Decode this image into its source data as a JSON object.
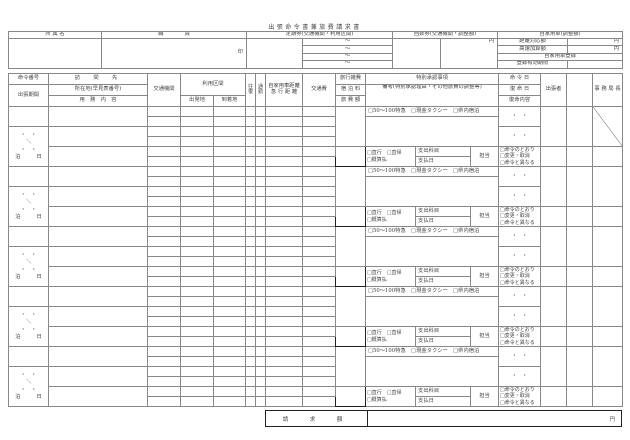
{
  "title": "出張命令書兼旅費請求書",
  "header": {
    "affiliation": "所 属 名",
    "staff": "職　　　　員",
    "seal": "印",
    "commuter_pass": "定期券(交通機関・利用区間)",
    "tilde": "〜",
    "coupon": "回数券(交通機関・調整額)",
    "yen": "円",
    "private_car": "自家用車(調整額)",
    "distance_amount": "距離対応額",
    "highway_amount": "高速加算額",
    "car_registration": "自家用車登録",
    "registration_expiry": "登録有効期限"
  },
  "columns": {
    "order_no": "命令番号",
    "trip_period": "出張期間",
    "destination": "訪　問　先",
    "location": "所在地(早見表番号)",
    "business": "用　務　内　容",
    "transport": "交通機関",
    "route": "利用区間",
    "departure": "出発地",
    "arrival": "到着地",
    "round_trip": "往復",
    "commute": "通勤",
    "car_distance": "自家用車距離",
    "express_distance": "急 行 距 離",
    "fare": "交通費",
    "misc": "旅行雑費",
    "lodging": "宿 泊 料",
    "travel_total": "旅 費 額",
    "special": "特別承認事項",
    "remarks": "備考(特別承認理由・その他旅費の調整等)",
    "order_date": "命 令 日",
    "report_date": "復 命 日",
    "report_content": "復命内容",
    "traveler": "出張者",
    "director": "事 務 局 長"
  },
  "block": {
    "dots": "・　・",
    "range": "＼",
    "nights": "泊　　　日",
    "special_checks": "□50～100特急　□現金タクシー　□県内宿泊",
    "direct": "□直行　□直帰",
    "advance": "□概算払",
    "expense_item": "支出科目",
    "payment_date": "支払日",
    "in_charge": "担当",
    "as_ordered": "□命令のとおり",
    "changed": "□変更・取消",
    "differs": "□命令と異なる"
  },
  "blocks_count": 5,
  "total": {
    "label": "請　求　額",
    "yen": "円"
  }
}
